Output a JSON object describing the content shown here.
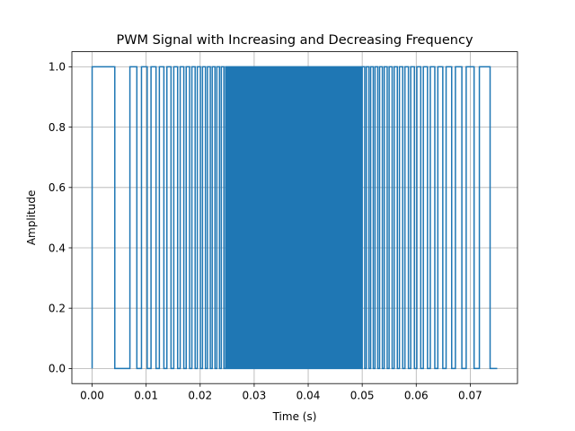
{
  "chart_data": {
    "type": "line",
    "title": "PWM Signal with Increasing and Decreasing Frequency",
    "xlabel": "Time (s)",
    "ylabel": "Amplitude",
    "xlim": [
      -0.00375,
      0.07875
    ],
    "ylim": [
      -0.05,
      1.05
    ],
    "xticks": [
      0.0,
      0.01,
      0.02,
      0.03,
      0.04,
      0.05,
      0.06,
      0.07
    ],
    "xtick_labels": [
      "0.00",
      "0.01",
      "0.02",
      "0.03",
      "0.04",
      "0.05",
      "0.06",
      "0.07"
    ],
    "yticks": [
      0.0,
      0.2,
      0.4,
      0.6,
      0.8,
      1.0
    ],
    "ytick_labels": [
      "0.0",
      "0.2",
      "0.4",
      "0.6",
      "0.8",
      "1.0"
    ],
    "grid": true,
    "line_color": "#1f77b4",
    "series": [
      {
        "signal": "pwm",
        "duty_cycle": 0.6,
        "x_range": [
          0.0,
          0.075
        ],
        "segments": [
          {
            "t_start": 0.0,
            "t_end": 0.025,
            "freq_start": 143,
            "freq_end": 1300
          },
          {
            "t_start": 0.025,
            "t_end": 0.05,
            "freq_start": 4000,
            "freq_end": 4000
          },
          {
            "t_start": 0.05,
            "t_end": 0.075,
            "freq_start": 1300,
            "freq_end": 143
          }
        ]
      }
    ]
  }
}
